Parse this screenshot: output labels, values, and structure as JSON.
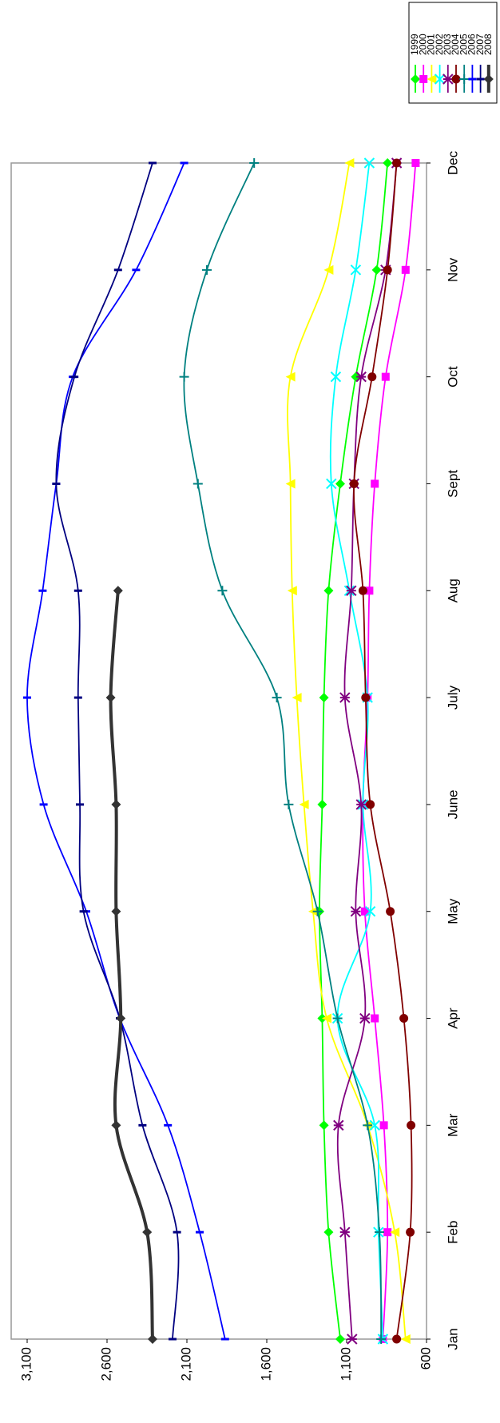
{
  "chart_data": {
    "type": "line",
    "categories": [
      "Jan",
      "Feb",
      "Mar",
      "Apr",
      "May",
      "June",
      "July",
      "Aug",
      "Sept",
      "Oct",
      "Nov",
      "Dec"
    ],
    "ylim": [
      600,
      3200
    ],
    "yticks": [
      600,
      {
        "value": 1100,
        "label": "1,100"
      },
      {
        "value": 1600,
        "label": "1,600"
      },
      {
        "value": 2100,
        "label": "2,100"
      },
      {
        "value": 2600,
        "label": "2,600"
      },
      {
        "value": 3100,
        "label": "3,100"
      }
    ],
    "legend": "right",
    "series": [
      {
        "name": "1999",
        "color": "#00ff00",
        "marker": "diamond",
        "values": [
          1140,
          1213,
          1242,
          1253,
          1270,
          1253,
          1242,
          1213,
          1140,
          1043,
          912,
          844
        ]
      },
      {
        "name": "2000",
        "color": "#ff00ff",
        "marker": "square",
        "values": [
          873,
          844,
          867,
          924,
          986,
          998,
          969,
          958,
          924,
          856,
          731,
          668
        ]
      },
      {
        "name": "2001",
        "color": "#ffff00",
        "marker": "triangle",
        "values": [
          731,
          799,
          969,
          1225,
          1310,
          1367,
          1412,
          1441,
          1452,
          1452,
          1213,
          1083
        ]
      },
      {
        "name": "2002",
        "color": "#00ffff",
        "marker": "x",
        "values": [
          873,
          901,
          924,
          1157,
          952,
          998,
          969,
          1083,
          1196,
          1168,
          1043,
          958
        ]
      },
      {
        "name": "2003",
        "color": "#800080",
        "marker": "star",
        "values": [
          1066,
          1111,
          1151,
          986,
          1043,
          1009,
          1111,
          1071,
          1054,
          1009,
          856,
          787
        ]
      },
      {
        "name": "2004",
        "color": "#800000",
        "marker": "circle",
        "values": [
          787,
          702,
          697,
          742,
          827,
          952,
          981,
          998,
          1054,
          941,
          844,
          787
        ]
      },
      {
        "name": "2005",
        "color": "#008080",
        "marker": "plus",
        "values": [
          884,
          895,
          969,
          1157,
          1282,
          1463,
          1537,
          1878,
          2031,
          2117,
          1975,
          1679
        ]
      },
      {
        "name": "2006",
        "color": "#0000ff",
        "marker": "dash",
        "values": [
          1861,
          2020,
          2219,
          2520,
          2730,
          2997,
          3100,
          3003,
          2918,
          2815,
          2418,
          2117
        ]
      },
      {
        "name": "2007",
        "color": "#000080",
        "marker": "dash",
        "values": [
          2190,
          2162,
          2378,
          2520,
          2747,
          2770,
          2781,
          2781,
          2918,
          2804,
          2531,
          2315
        ]
      },
      {
        "name": "2008",
        "color": "#333333",
        "marker": "diamond",
        "width": 4,
        "values": [
          2315,
          2349,
          2543,
          2514,
          2543,
          2543,
          2577,
          2531,
          null,
          null,
          null,
          null
        ]
      }
    ]
  }
}
